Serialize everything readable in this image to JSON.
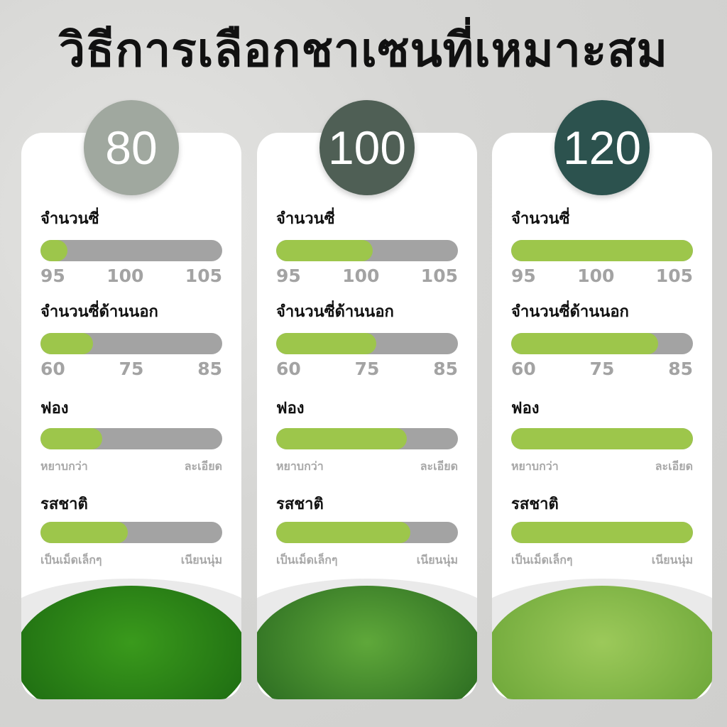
{
  "title": "วิธีการเลือกชาเซนที่เหมาะสม",
  "colors": {
    "fill": "#9dc64b",
    "track": "#a3a3a3"
  },
  "cards": [
    {
      "number": "80",
      "circle_color": "#a0a89f",
      "tea_colors": [
        "#3a9a1c",
        "#1f6e12"
      ],
      "metrics": [
        {
          "label": "จำนวนซี่",
          "ticks": [
            "95",
            "100",
            "105"
          ],
          "fill": 0.15
        },
        {
          "label": "จำนวนซี่ด้านนอก",
          "ticks": [
            "60",
            "75",
            "85"
          ],
          "fill": 0.29
        },
        {
          "label": "ฟอง",
          "ends": [
            "หยาบกว่า",
            "ละเอียด"
          ],
          "fill": 0.34
        },
        {
          "label": "รสชาติ",
          "ends": [
            "เป็นเม็ดเล็กๆ",
            "เนียนนุ่ม"
          ],
          "fill": 0.48
        }
      ]
    },
    {
      "number": "100",
      "circle_color": "#4f5f55",
      "tea_colors": [
        "#5fa83a",
        "#2d6e22"
      ],
      "metrics": [
        {
          "label": "จำนวนซี่",
          "ticks": [
            "95",
            "100",
            "105"
          ],
          "fill": 0.53
        },
        {
          "label": "จำนวนซี่ด้านนอก",
          "ticks": [
            "60",
            "75",
            "85"
          ],
          "fill": 0.55
        },
        {
          "label": "ฟอง",
          "ends": [
            "หยาบกว่า",
            "ละเอียด"
          ],
          "fill": 0.72
        },
        {
          "label": "รสชาติ",
          "ends": [
            "เป็นเม็ดเล็กๆ",
            "เนียนนุ่ม"
          ],
          "fill": 0.74
        }
      ]
    },
    {
      "number": "120",
      "circle_color": "#2c524e",
      "tea_colors": [
        "#9cc95a",
        "#6fa83a"
      ],
      "metrics": [
        {
          "label": "จำนวนซี่",
          "ticks": [
            "95",
            "100",
            "105"
          ],
          "fill": 1.0
        },
        {
          "label": "จำนวนซี่ด้านนอก",
          "ticks": [
            "60",
            "75",
            "85"
          ],
          "fill": 0.81
        },
        {
          "label": "ฟอง",
          "ends": [
            "หยาบกว่า",
            "ละเอียด"
          ],
          "fill": 1.0
        },
        {
          "label": "รสชาติ",
          "ends": [
            "เป็นเม็ดเล็กๆ",
            "เนียนนุ่ม"
          ],
          "fill": 1.0
        }
      ]
    }
  ]
}
